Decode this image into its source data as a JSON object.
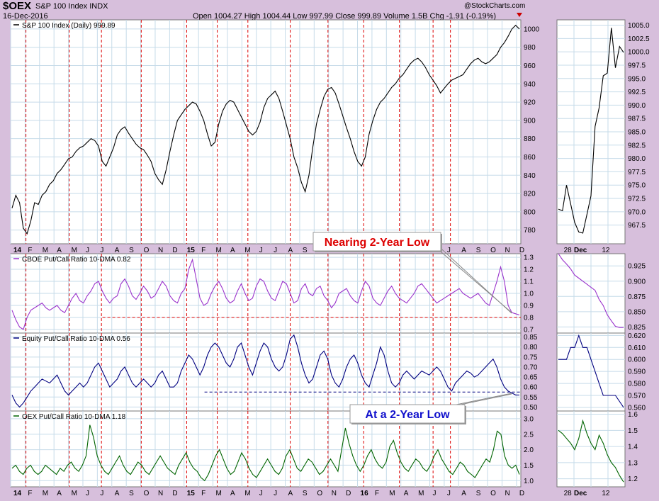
{
  "header": {
    "symbol": "$OEX",
    "name": "S&P 100 Index INDX",
    "date": "16-Dec-2016",
    "ohlc": "Open 1004.27  High 1004.44  Low 997.99  Close 999.89  Volume 1.5B  Chg -1.91 (-0.19%)",
    "watermark": "@StockCharts.com"
  },
  "colors": {
    "price": "#000000",
    "cboe": "#9a33cc",
    "equity": "#000080",
    "oex": "#006400",
    "marker": "#dd0000",
    "grid": "#c6dbe9",
    "callout_red": "#dd0000",
    "callout_blue": "#1010cc"
  },
  "chart_data": [
    {
      "type": "line",
      "panel": "price",
      "title": "S&P 100 Index (Daily) 999.89",
      "ylim": [
        765,
        1010
      ],
      "yticks": [
        780,
        800,
        820,
        840,
        860,
        880,
        900,
        920,
        940,
        960,
        980,
        1000
      ],
      "x_labels": [
        "14",
        "F",
        "M",
        "A",
        "M",
        "J",
        "J",
        "A",
        "S",
        "O",
        "N",
        "D",
        "15",
        "F",
        "M",
        "A",
        "M",
        "J",
        "J",
        "A",
        "S",
        "O",
        "N",
        "D",
        "16",
        "F",
        "M",
        "A",
        "M",
        "J",
        "J",
        "A",
        "S",
        "O",
        "N",
        "D"
      ],
      "series": [
        {
          "values": [
            804,
            818,
            810,
            782,
            776,
            790,
            810,
            808,
            818,
            822,
            830,
            834,
            842,
            846,
            852,
            858,
            860,
            866,
            870,
            872,
            876,
            880,
            878,
            872,
            855,
            850,
            860,
            870,
            884,
            890,
            893,
            886,
            880,
            874,
            870,
            868,
            862,
            855,
            842,
            835,
            830,
            846,
            866,
            884,
            900,
            906,
            912,
            916,
            920,
            918,
            910,
            900,
            885,
            872,
            876,
            896,
            910,
            918,
            922,
            920,
            912,
            904,
            896,
            888,
            884,
            888,
            898,
            914,
            924,
            928,
            932,
            924,
            910,
            895,
            880,
            860,
            848,
            832,
            822,
            840,
            870,
            896,
            912,
            926,
            934,
            936,
            930,
            918,
            905,
            892,
            880,
            866,
            855,
            850,
            860,
            885,
            900,
            912,
            920,
            924,
            930,
            936,
            940,
            946,
            950,
            956,
            962,
            966,
            968,
            964,
            958,
            950,
            944,
            938,
            930,
            935,
            940,
            944,
            946,
            948,
            950,
            956,
            962,
            966,
            968,
            964,
            962,
            964,
            968,
            972,
            980,
            985,
            992,
            1000,
            1004,
            1000
          ]
        }
      ]
    },
    {
      "type": "line",
      "panel": "cboe",
      "title": "CBOE Put/Call Ratio 10-DMA 0.82",
      "ylim": [
        0.67,
        1.33
      ],
      "yticks": [
        0.7,
        0.8,
        0.9,
        1.0,
        1.1,
        1.2,
        1.3
      ],
      "reference_level": 0.8,
      "series": [
        {
          "values": [
            0.86,
            0.78,
            0.72,
            0.7,
            0.8,
            0.86,
            0.88,
            0.9,
            0.92,
            0.88,
            0.86,
            0.88,
            0.9,
            0.86,
            0.84,
            0.9,
            0.96,
            1.0,
            0.94,
            0.92,
            0.98,
            1.02,
            1.08,
            1.1,
            1.02,
            0.96,
            0.92,
            0.96,
            0.98,
            1.08,
            1.12,
            1.06,
            0.98,
            0.95,
            1.0,
            1.06,
            1.02,
            0.96,
            0.98,
            1.04,
            1.1,
            1.06,
            0.98,
            0.94,
            0.92,
            1.0,
            1.04,
            1.2,
            1.28,
            1.12,
            0.96,
            0.9,
            0.92,
            1.0,
            1.06,
            1.1,
            1.04,
            0.96,
            0.92,
            0.94,
            1.02,
            1.08,
            1.0,
            0.94,
            0.96,
            1.06,
            1.12,
            1.1,
            1.02,
            0.96,
            0.94,
            1.02,
            1.1,
            1.08,
            1.0,
            0.92,
            0.94,
            1.04,
            1.08,
            1.0,
            0.98,
            1.04,
            1.06,
            0.98,
            0.94,
            0.88,
            0.92,
            1.0,
            1.02,
            1.04,
            0.98,
            0.94,
            0.92,
            1.02,
            1.1,
            1.06,
            0.96,
            0.92,
            0.9,
            0.96,
            1.02,
            1.06,
            1.0,
            0.96,
            0.94,
            0.92,
            0.96,
            1.0,
            1.06,
            1.08,
            1.04,
            1.0,
            0.96,
            0.92,
            0.94,
            0.96,
            0.98,
            1.0,
            1.02,
            1.04,
            1.0,
            0.98,
            0.96,
            0.98,
            1.0,
            0.96,
            0.92,
            0.9,
            1.0,
            1.1,
            1.22,
            1.1,
            0.9,
            0.84,
            0.83,
            0.82
          ]
        }
      ]
    },
    {
      "type": "line",
      "panel": "equity",
      "title": "Equity Put/Call Ratio 10-DMA 0.56",
      "ylim": [
        0.48,
        0.87
      ],
      "yticks": [
        0.5,
        0.55,
        0.6,
        0.65,
        0.7,
        0.75,
        0.8,
        0.85
      ],
      "reference_level": 0.575,
      "series": [
        {
          "values": [
            0.56,
            0.52,
            0.5,
            0.52,
            0.55,
            0.58,
            0.6,
            0.62,
            0.64,
            0.63,
            0.62,
            0.64,
            0.66,
            0.62,
            0.58,
            0.56,
            0.58,
            0.6,
            0.62,
            0.6,
            0.62,
            0.66,
            0.7,
            0.72,
            0.68,
            0.64,
            0.6,
            0.62,
            0.64,
            0.68,
            0.7,
            0.66,
            0.62,
            0.6,
            0.62,
            0.64,
            0.62,
            0.6,
            0.62,
            0.66,
            0.68,
            0.64,
            0.6,
            0.6,
            0.62,
            0.68,
            0.72,
            0.76,
            0.74,
            0.7,
            0.66,
            0.7,
            0.76,
            0.8,
            0.82,
            0.8,
            0.76,
            0.72,
            0.7,
            0.74,
            0.8,
            0.82,
            0.76,
            0.7,
            0.66,
            0.72,
            0.78,
            0.82,
            0.8,
            0.74,
            0.7,
            0.68,
            0.7,
            0.76,
            0.84,
            0.86,
            0.8,
            0.72,
            0.66,
            0.62,
            0.64,
            0.7,
            0.76,
            0.78,
            0.74,
            0.66,
            0.62,
            0.6,
            0.64,
            0.7,
            0.74,
            0.76,
            0.72,
            0.66,
            0.62,
            0.6,
            0.66,
            0.72,
            0.8,
            0.76,
            0.68,
            0.62,
            0.6,
            0.62,
            0.66,
            0.68,
            0.66,
            0.64,
            0.66,
            0.68,
            0.67,
            0.66,
            0.68,
            0.7,
            0.68,
            0.64,
            0.6,
            0.58,
            0.62,
            0.64,
            0.66,
            0.68,
            0.67,
            0.65,
            0.66,
            0.68,
            0.7,
            0.72,
            0.74,
            0.7,
            0.64,
            0.6,
            0.58,
            0.57,
            0.56,
            0.56
          ]
        }
      ]
    },
    {
      "type": "line",
      "panel": "oex",
      "title": "OEX Put/Call Ratio 10-DMA 1.18",
      "ylim": [
        0.8,
        3.25
      ],
      "yticks": [
        1.0,
        1.5,
        2.0,
        2.5,
        3.0
      ],
      "series": [
        {
          "values": [
            1.4,
            1.5,
            1.3,
            1.2,
            1.4,
            1.5,
            1.3,
            1.2,
            1.3,
            1.5,
            1.4,
            1.3,
            1.2,
            1.4,
            1.3,
            1.5,
            1.6,
            1.4,
            1.3,
            1.5,
            1.8,
            2.8,
            2.4,
            1.8,
            1.5,
            1.3,
            1.2,
            1.4,
            1.6,
            1.8,
            1.5,
            1.3,
            1.2,
            1.4,
            1.6,
            1.5,
            1.3,
            1.2,
            1.4,
            1.6,
            1.8,
            1.6,
            1.4,
            1.3,
            1.2,
            1.5,
            1.7,
            1.9,
            1.6,
            1.4,
            1.3,
            1.1,
            1.0,
            1.2,
            1.5,
            1.8,
            2.0,
            1.7,
            1.4,
            1.2,
            1.3,
            1.6,
            1.9,
            1.7,
            1.4,
            1.2,
            1.1,
            1.3,
            1.5,
            1.7,
            1.5,
            1.3,
            1.2,
            1.4,
            1.8,
            2.0,
            1.7,
            1.4,
            1.3,
            1.5,
            1.7,
            1.6,
            1.4,
            1.2,
            1.3,
            1.5,
            1.7,
            1.5,
            1.3,
            2.0,
            2.7,
            2.2,
            1.8,
            1.5,
            1.3,
            1.5,
            1.8,
            2.0,
            1.7,
            1.5,
            1.4,
            1.6,
            2.1,
            2.3,
            1.9,
            1.6,
            1.4,
            1.3,
            1.5,
            1.7,
            1.6,
            1.4,
            1.3,
            1.5,
            1.8,
            2.0,
            1.7,
            1.5,
            1.3,
            1.2,
            1.4,
            1.6,
            1.5,
            1.3,
            1.2,
            1.1,
            1.3,
            1.5,
            1.7,
            1.6,
            2.0,
            2.6,
            2.5,
            1.8,
            1.5,
            1.4,
            1.5,
            1.2
          ]
        }
      ]
    },
    {
      "type": "line",
      "panel": "price-zoom",
      "ylim": [
        964,
        1006
      ],
      "yticks": [
        967.5,
        970.0,
        972.5,
        975.0,
        977.5,
        980.0,
        982.5,
        985.0,
        987.5,
        990.0,
        992.5,
        995.0,
        997.5,
        1000.0,
        1002.5,
        1005.0
      ],
      "x_labels": [
        "28",
        "Dec",
        "12"
      ],
      "series": [
        {
          "values": [
            970.5,
            970.2,
            975.0,
            971.5,
            968.0,
            966.2,
            966.0,
            969.5,
            973.0,
            986.0,
            989.5,
            995.5,
            996.0,
            1004.5,
            997.0,
            1001.0,
            999.9
          ]
        }
      ]
    },
    {
      "type": "line",
      "panel": "cboe-zoom",
      "ylim": [
        0.815,
        0.945
      ],
      "yticks": [
        0.825,
        0.85,
        0.875,
        0.9,
        0.925
      ],
      "series": [
        {
          "values": [
            0.945,
            0.935,
            0.928,
            0.92,
            0.91,
            0.905,
            0.9,
            0.895,
            0.89,
            0.885,
            0.87,
            0.86,
            0.845,
            0.835,
            0.826,
            0.824,
            0.824
          ]
        }
      ]
    },
    {
      "type": "line",
      "panel": "equity-zoom",
      "ylim": [
        0.557,
        0.622
      ],
      "yticks": [
        0.56,
        0.57,
        0.58,
        0.59,
        0.6,
        0.61,
        0.62
      ],
      "series": [
        {
          "values": [
            0.6,
            0.6,
            0.6,
            0.61,
            0.61,
            0.62,
            0.61,
            0.61,
            0.6,
            0.59,
            0.58,
            0.57,
            0.57,
            0.57,
            0.57,
            0.565,
            0.56
          ]
        }
      ]
    },
    {
      "type": "line",
      "panel": "oex-zoom",
      "ylim": [
        1.15,
        1.62
      ],
      "yticks": [
        1.2,
        1.3,
        1.4,
        1.5,
        1.6
      ],
      "series": [
        {
          "values": [
            1.5,
            1.48,
            1.45,
            1.42,
            1.38,
            1.45,
            1.56,
            1.48,
            1.42,
            1.38,
            1.47,
            1.42,
            1.35,
            1.3,
            1.27,
            1.22,
            1.18
          ]
        }
      ]
    }
  ],
  "annotations": {
    "callout1": "Nearing 2-Year Low",
    "callout2": "At a 2-Year Low"
  }
}
